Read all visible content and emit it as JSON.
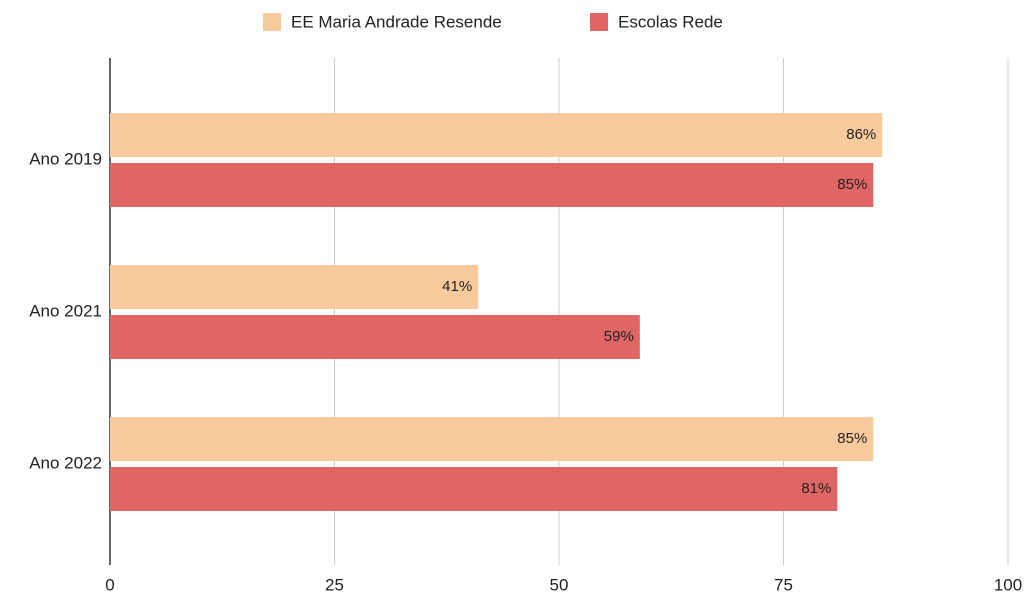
{
  "chart_data": {
    "type": "bar",
    "orientation": "horizontal",
    "categories": [
      "Ano 2019",
      "Ano 2021",
      "Ano 2022"
    ],
    "series": [
      {
        "name": "EE Maria Andrade Resende",
        "color": "#f9cb9c",
        "values": [
          86,
          41,
          85
        ],
        "value_labels": [
          "86%",
          "41%",
          "85%"
        ]
      },
      {
        "name": "Escolas Rede",
        "color": "#e06666",
        "values": [
          85,
          59,
          81
        ],
        "value_labels": [
          "85%",
          "59%",
          "81%"
        ]
      }
    ],
    "xlim": [
      0,
      100
    ],
    "xticks": [
      0,
      25,
      50,
      75,
      100
    ],
    "grid": true,
    "legend": "top"
  }
}
